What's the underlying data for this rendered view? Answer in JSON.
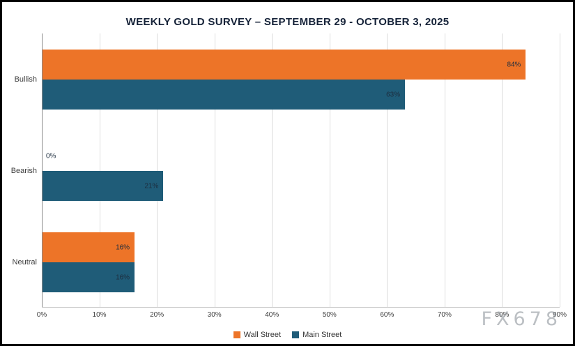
{
  "title": "WEEKLY GOLD SURVEY – SEPTEMBER 29 - OCTOBER 3, 2025",
  "watermark": "FX678",
  "chart_data": {
    "type": "bar",
    "orientation": "horizontal",
    "title": "WEEKLY GOLD SURVEY – SEPTEMBER 29 - OCTOBER 3, 2025",
    "categories": [
      "Bullish",
      "Bearish",
      "Neutral"
    ],
    "series": [
      {
        "name": "Wall Street",
        "color": "#ED7428",
        "values": [
          84,
          0,
          16
        ]
      },
      {
        "name": "Main Street",
        "color": "#1F5C78",
        "values": [
          63,
          21,
          16
        ]
      }
    ],
    "xlim": [
      0,
      90
    ],
    "x_ticks": [
      "0%",
      "10%",
      "20%",
      "30%",
      "40%",
      "50%",
      "60%",
      "70%",
      "80%",
      "90%"
    ],
    "xlabel": "",
    "ylabel": "",
    "data_labels": true,
    "data_label_format": "percent",
    "grid": true,
    "legend_position": "bottom"
  }
}
